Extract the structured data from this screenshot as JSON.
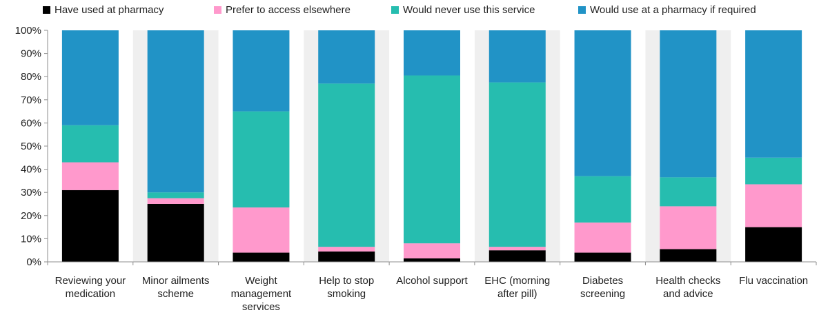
{
  "chart_data": {
    "type": "bar",
    "stacked": true,
    "normalized": true,
    "title": "",
    "xlabel": "",
    "ylabel": "",
    "ylim": [
      0,
      1
    ],
    "y_ticks": [
      "0%",
      "10%",
      "20%",
      "30%",
      "40%",
      "50%",
      "60%",
      "70%",
      "80%",
      "90%",
      "100%"
    ],
    "grid": "alternating shaded category bands",
    "legend_position": "top",
    "categories": [
      [
        "Reviewing your",
        "medication"
      ],
      [
        "Minor ailments",
        "scheme"
      ],
      [
        "Weight",
        "management",
        "services"
      ],
      [
        "Help to stop",
        "smoking"
      ],
      [
        "Alcohol support"
      ],
      [
        "EHC (morning",
        "after pill)"
      ],
      [
        "Diabetes",
        "screening"
      ],
      [
        "Health checks",
        "and advice"
      ],
      [
        "Flu vaccination"
      ]
    ],
    "series": [
      {
        "name": "Have used at pharmacy",
        "color": "#000000",
        "values": [
          0.31,
          0.25,
          0.04,
          0.045,
          0.015,
          0.05,
          0.04,
          0.055,
          0.15
        ]
      },
      {
        "name": "Prefer to access elsewhere",
        "color": "#ff99cc",
        "values": [
          0.12,
          0.025,
          0.195,
          0.02,
          0.065,
          0.015,
          0.13,
          0.185,
          0.185
        ]
      },
      {
        "name": "Would never use this service",
        "color": "#26bdaf",
        "values": [
          0.16,
          0.025,
          0.415,
          0.705,
          0.725,
          0.71,
          0.2,
          0.125,
          0.115
        ]
      },
      {
        "name": "Would use at a pharmacy if required",
        "color": "#2193c6",
        "values": [
          0.41,
          0.7,
          0.35,
          0.23,
          0.195,
          0.225,
          0.63,
          0.635,
          0.55
        ]
      }
    ]
  }
}
